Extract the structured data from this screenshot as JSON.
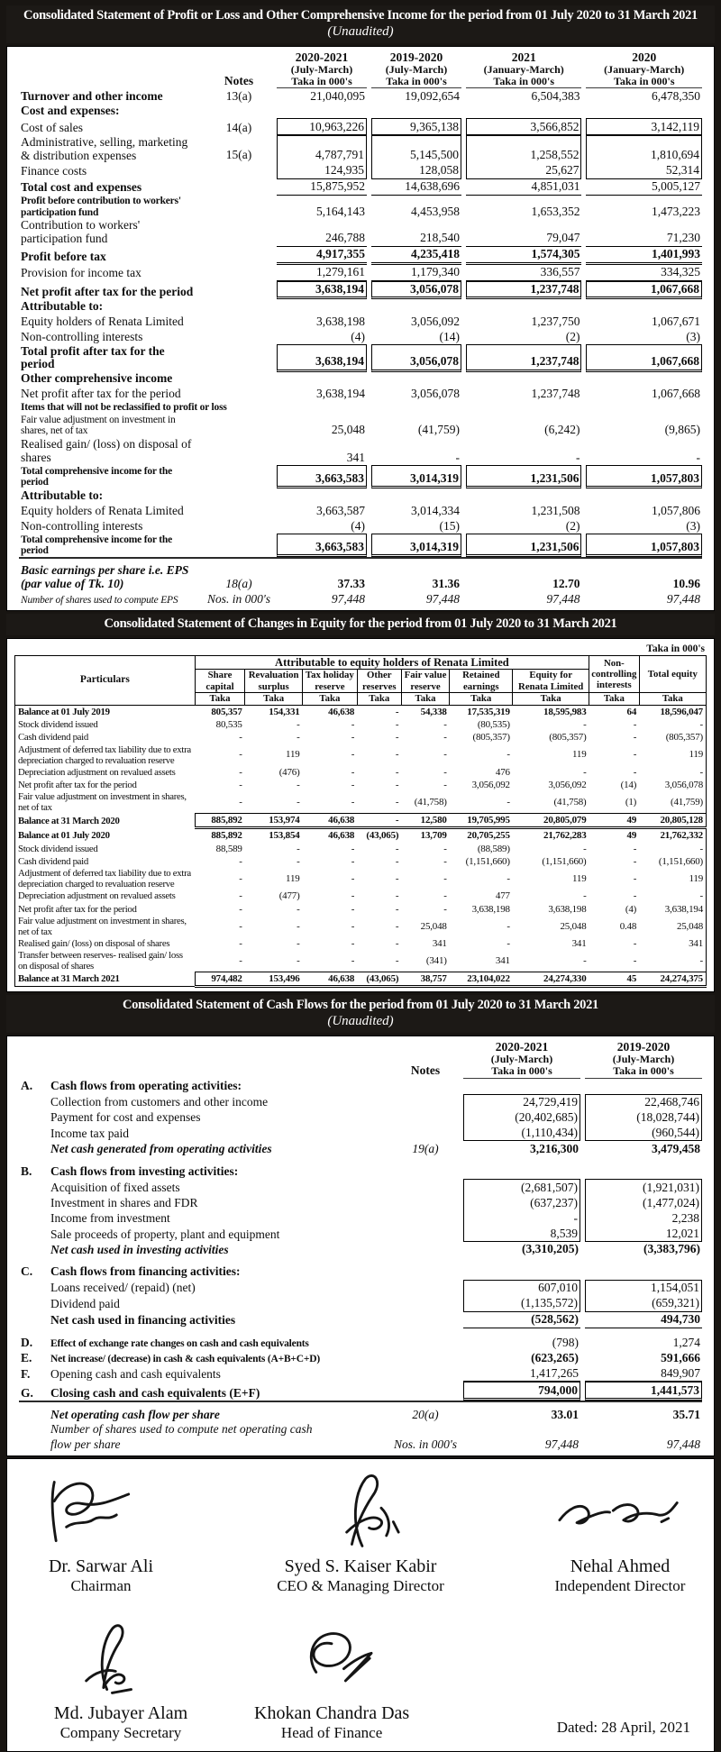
{
  "statement1": {
    "title": "Consolidated Statement of Profit or Loss and Other Comprehensive Income for the period from 01 July 2020 to 31 March 2021",
    "subtitle": "(Unaudited)",
    "notes_label": "Notes",
    "columns": [
      {
        "period": "2020-2021",
        "range": "(July-March)",
        "unit": "Taka in 000's"
      },
      {
        "period": "2019-2020",
        "range": "(July-March)",
        "unit": "Taka in 000's"
      },
      {
        "period": "2021",
        "range": "(January-March)",
        "unit": "Taka in 000's"
      },
      {
        "period": "2020",
        "range": "(January-March)",
        "unit": "Taka in 000's"
      }
    ],
    "rows": [
      {
        "l": "Turnover and other income",
        "n": "13(a)",
        "v": [
          "21,040,095",
          "19,092,654",
          "6,504,383",
          "6,478,350"
        ],
        "cls": "b"
      },
      {
        "l": "Cost and expenses:",
        "cls": "b"
      },
      {
        "l": "Cost of sales",
        "n": "14(a)",
        "v": [
          "10,963,226",
          "9,365,138",
          "3,566,852",
          "3,142,119"
        ],
        "vcls": "box"
      },
      {
        "l": "Administrative, selling, marketing & distribution expenses",
        "n": "15(a)",
        "v": [
          "4,787,791",
          "5,145,500",
          "1,258,552",
          "1,810,694"
        ],
        "vcls": "bx-t"
      },
      {
        "l": "Finance costs",
        "v": [
          "124,935",
          "128,058",
          "25,627",
          "52,314"
        ],
        "vcls": "bx-b"
      },
      {
        "l": "Total cost and expenses",
        "v": [
          "15,875,952",
          "14,638,696",
          "4,851,031",
          "5,005,127"
        ],
        "cls": "b",
        "vcls": "u"
      },
      {
        "l": "Profit before contribution to workers' participation fund",
        "v": [
          "5,164,143",
          "4,453,958",
          "1,653,352",
          "1,473,223"
        ],
        "cls": "b cond"
      },
      {
        "l": "Contribution to workers' participation fund",
        "v": [
          "246,788",
          "218,540",
          "79,047",
          "71,230"
        ],
        "vcls": "u"
      },
      {
        "l": "Profit before tax",
        "v": [
          "4,917,355",
          "4,235,418",
          "1,574,305",
          "1,401,993"
        ],
        "cls": "b",
        "vcls": "uu b"
      },
      {
        "l": "Provision for income tax",
        "v": [
          "1,279,161",
          "1,179,340",
          "336,557",
          "334,325"
        ],
        "vcls": "u"
      },
      {
        "l": "Net profit after tax for the period",
        "v": [
          "3,638,194",
          "3,056,078",
          "1,237,748",
          "1,067,668"
        ],
        "cls": "b",
        "vcls": "boxdd b"
      },
      {
        "l": "Attributable to:",
        "cls": "b"
      },
      {
        "l": "Equity holders of Renata Limited",
        "v": [
          "3,638,198",
          "3,056,092",
          "1,237,750",
          "1,067,671"
        ]
      },
      {
        "l": "Non-controlling interests",
        "v": [
          "(4)",
          "(14)",
          "(2)",
          "(3)"
        ]
      },
      {
        "l": "Total profit after tax for the period",
        "v": [
          "3,638,194",
          "3,056,078",
          "1,237,748",
          "1,067,668"
        ],
        "cls": "b",
        "vcls": "boxdd b"
      },
      {
        "l": "Other comprehensive income",
        "cls": "b"
      },
      {
        "l": "Net profit after tax for the period",
        "v": [
          "3,638,194",
          "3,056,078",
          "1,237,748",
          "1,067,668"
        ]
      },
      {
        "l": "Items that will not be reclassified to profit or loss",
        "cls": "b cond"
      },
      {
        "l": "Fair value adjustment on investment in shares, net of tax",
        "v": [
          "25,048",
          "(41,759)",
          "(6,242)",
          "(9,865)"
        ],
        "cls": "cond"
      },
      {
        "l": "Realised gain/ (loss) on disposal of shares",
        "v": [
          "341",
          "-",
          "-",
          "-"
        ]
      },
      {
        "l": "Total comprehensive income for the period",
        "v": [
          "3,663,583",
          "3,014,319",
          "1,231,506",
          "1,057,803"
        ],
        "cls": "b cond",
        "vcls": "boxdd b"
      },
      {
        "l": "Attributable to:",
        "cls": "b"
      },
      {
        "l": "Equity holders of Renata Limited",
        "v": [
          "3,663,587",
          "3,014,334",
          "1,231,508",
          "1,057,806"
        ]
      },
      {
        "l": "Non-controlling interests",
        "v": [
          "(4)",
          "(15)",
          "(2)",
          "(3)"
        ]
      },
      {
        "l": "Total comprehensive income for the period",
        "v": [
          "3,663,583",
          "3,014,319",
          "1,231,506",
          "1,057,803"
        ],
        "cls": "b cond",
        "vcls": "boxdd b"
      },
      {
        "sep": true
      },
      {
        "l": "Basic earnings per share i.e. EPS",
        "l2": "(par value of Tk. 10)",
        "n": "18(a)",
        "v": [
          "37.33",
          "31.36",
          "12.70",
          "10.96"
        ],
        "cls": "bi",
        "vcls": "b"
      },
      {
        "l": "Number of shares used to compute EPS",
        "n": "Nos. in 000's",
        "v": [
          "97,448",
          "97,448",
          "97,448",
          "97,448"
        ],
        "cls": "i cond",
        "vcls": "i"
      }
    ]
  },
  "statement2": {
    "title": "Consolidated Statement of Changes in Equity for the period from 01 July 2020 to 31 March 2021",
    "taka_label": "Taka in 000's",
    "particulars_label": "Particulars",
    "group_header": "Attributable to equity holders of Renata Limited",
    "taka_sub": "Taka",
    "columns": [
      "Share capital",
      "Revaluation surplus",
      "Tax holiday reserve",
      "Other reserves",
      "Fair value reserve",
      "Retained earnings",
      "Equity for Renata Limited",
      "Non-controlling interests",
      "Total equity"
    ],
    "rows": [
      {
        "l": "Balance at 01 July 2019",
        "v": [
          "805,357",
          "154,331",
          "46,638",
          "-",
          "54,338",
          "17,535,319",
          "18,595,983",
          "64",
          "18,596,047"
        ],
        "cls": "b"
      },
      {
        "l": "Stock dividend issued",
        "v": [
          "80,535",
          "-",
          "-",
          "-",
          "-",
          "(80,535)",
          "-",
          "-",
          "-"
        ]
      },
      {
        "l": "Cash dividend paid",
        "v": [
          "-",
          "-",
          "-",
          "-",
          "-",
          "(805,357)",
          "(805,357)",
          "-",
          "(805,357)"
        ]
      },
      {
        "l": "Adjustment of deferred tax liability due to extra depreciation charged to revaluation reserve",
        "v": [
          "-",
          "119",
          "-",
          "-",
          "-",
          "-",
          "119",
          "-",
          "119"
        ]
      },
      {
        "l": "Depreciation adjustment on revalued assets",
        "v": [
          "-",
          "(476)",
          "-",
          "-",
          "-",
          "476",
          "-",
          "-",
          "-"
        ]
      },
      {
        "l": "Net profit after tax for the period",
        "v": [
          "-",
          "-",
          "-",
          "-",
          "-",
          "3,056,092",
          "3,056,092",
          "(14)",
          "3,056,078"
        ]
      },
      {
        "l": "Fair value adjustment on investment in shares, net of tax",
        "v": [
          "-",
          "-",
          "-",
          "-",
          "(41,758)",
          "-",
          "(41,758)",
          "(1)",
          "(41,759)"
        ]
      },
      {
        "l": "Balance at 31 March 2020",
        "v": [
          "885,892",
          "153,974",
          "46,638",
          "-",
          "12,580",
          "19,705,995",
          "20,805,079",
          "49",
          "20,805,128"
        ],
        "cls": "b boxed"
      },
      {
        "l": "Balance at 01 July 2020",
        "v": [
          "885,892",
          "153,854",
          "46,638",
          "(43,065)",
          "13,709",
          "20,705,255",
          "21,762,283",
          "49",
          "21,762,332"
        ],
        "cls": "b"
      },
      {
        "l": "Stock dividend issued",
        "v": [
          "88,589",
          "-",
          "-",
          "-",
          "-",
          "(88,589)",
          "-",
          "-",
          "-"
        ]
      },
      {
        "l": "Cash dividend paid",
        "v": [
          "-",
          "-",
          "-",
          "-",
          "-",
          "(1,151,660)",
          "(1,151,660)",
          "-",
          "(1,151,660)"
        ]
      },
      {
        "l": "Adjustment of deferred tax liability due to extra depreciation charged to revaluation reserve",
        "v": [
          "-",
          "119",
          "-",
          "-",
          "-",
          "-",
          "119",
          "-",
          "119"
        ]
      },
      {
        "l": "Depreciation adjustment on revalued assets",
        "v": [
          "-",
          "(477)",
          "-",
          "-",
          "-",
          "477",
          "-",
          "-",
          "-"
        ]
      },
      {
        "l": "Net profit after tax for the period",
        "v": [
          "-",
          "-",
          "-",
          "-",
          "-",
          "3,638,198",
          "3,638,198",
          "(4)",
          "3,638,194"
        ]
      },
      {
        "l": "Fair value adjustment on investment in shares, net of tax",
        "v": [
          "-",
          "-",
          "-",
          "-",
          "25,048",
          "-",
          "25,048",
          "0.48",
          "25,048"
        ]
      },
      {
        "l": "Realised gain/ (loss) on disposal of shares",
        "v": [
          "-",
          "-",
          "-",
          "-",
          "341",
          "-",
          "341",
          "-",
          "341"
        ]
      },
      {
        "l": "Transfer between reserves- realised gain/ loss on disposal of shares",
        "v": [
          "-",
          "-",
          "-",
          "-",
          "(341)",
          "341",
          "-",
          "-",
          "-"
        ]
      },
      {
        "l": "Balance at 31 March 2021",
        "v": [
          "974,482",
          "153,496",
          "46,638",
          "(43,065)",
          "38,757",
          "23,104,022",
          "24,274,330",
          "45",
          "24,274,375"
        ],
        "cls": "b boxed"
      }
    ]
  },
  "statement3": {
    "title": "Consolidated Statement of Cash Flows for the period from 01 July 2020 to 31 March 2021",
    "subtitle": "(Unaudited)",
    "notes_label": "Notes",
    "columns": [
      {
        "period": "2020-2021",
        "range": "(July-March)",
        "unit": "Taka in 000's"
      },
      {
        "period": "2019-2020",
        "range": "(July-March)",
        "unit": "Taka in 000's"
      }
    ],
    "rows": [
      {
        "g": "A.",
        "l": "Cash flows from operating activities:",
        "cls": "b"
      },
      {
        "l": "Collection from customers and other income",
        "v": [
          "24,729,419",
          "22,468,746"
        ],
        "vcls": "bx-t"
      },
      {
        "l": "Payment for cost and expenses",
        "v": [
          "(20,402,685)",
          "(18,028,744)"
        ],
        "vcls": "bx-m"
      },
      {
        "l": "Income tax paid",
        "v": [
          "(1,110,434)",
          "(960,544)"
        ],
        "vcls": "bx-b"
      },
      {
        "l": "Net cash generated from operating activities",
        "n": "19(a)",
        "v": [
          "3,216,300",
          "3,479,458"
        ],
        "cls": "bi",
        "vcls": "b"
      },
      {
        "sp": true
      },
      {
        "g": "B.",
        "l": "Cash flows from investing activities:",
        "cls": "b"
      },
      {
        "l": "Acquisition of fixed assets",
        "v": [
          "(2,681,507)",
          "(1,921,031)"
        ],
        "vcls": "bx-t"
      },
      {
        "l": "Investment in shares and FDR",
        "v": [
          "(637,237)",
          "(1,477,024)"
        ],
        "vcls": "bx-m"
      },
      {
        "l": "Income from investment",
        "v": [
          "-",
          "2,238"
        ],
        "vcls": "bx-m"
      },
      {
        "l": "Sale proceeds of property, plant and equipment",
        "v": [
          "8,539",
          "12,021"
        ],
        "vcls": "bx-b"
      },
      {
        "l": "Net cash used in investing activities",
        "v": [
          "(3,310,205)",
          "(3,383,796)"
        ],
        "cls": "bi",
        "vcls": "b"
      },
      {
        "sp": true
      },
      {
        "g": "C.",
        "l": "Cash flows from financing activities:",
        "cls": "b"
      },
      {
        "l": "Loans received/ (repaid) (net)",
        "v": [
          "607,010",
          "1,154,051"
        ],
        "vcls": "bx-t"
      },
      {
        "l": "Dividend paid",
        "v": [
          "(1,135,572)",
          "(659,321)"
        ],
        "vcls": "bx-b"
      },
      {
        "l": "Net cash used in financing activities",
        "v": [
          "(528,562)",
          "494,730"
        ],
        "cls": "b",
        "vcls": "b u"
      },
      {
        "sp": true
      },
      {
        "g": "D.",
        "l": "Effect of exchange rate changes on cash and cash equivalents",
        "v": [
          "(798)",
          "1,274"
        ],
        "cls": "b cond"
      },
      {
        "g": "E.",
        "l": "Net increase/ (decrease) in cash & cash equivalents (A+B+C+D)",
        "v": [
          "(623,265)",
          "591,666"
        ],
        "cls": "b cond",
        "vcls": "b"
      },
      {
        "g": "F.",
        "l": "Opening cash and cash equivalents",
        "v": [
          "1,417,265",
          "849,907"
        ],
        "vcls": "u"
      },
      {
        "g": "G.",
        "l": "Closing cash and cash equivalents (E+F)",
        "v": [
          "794,000",
          "1,441,573"
        ],
        "cls": "b",
        "vcls": "boxdd b"
      },
      {
        "sep": true
      },
      {
        "l": "Net operating cash flow per share",
        "n": "20(a)",
        "v": [
          "33.01",
          "35.71"
        ],
        "cls": "bi",
        "vcls": "b"
      },
      {
        "l": "Number of shares used to compute net operating cash",
        "cls": "i"
      },
      {
        "l": "flow per share",
        "n": "Nos. in 000's",
        "v": [
          "97,448",
          "97,448"
        ],
        "cls": "i",
        "vcls": "i"
      }
    ]
  },
  "signatures": {
    "top": [
      {
        "name": "Dr. Sarwar Ali",
        "title": "Chairman"
      },
      {
        "name": "Syed S. Kaiser Kabir",
        "title": "CEO & Managing Director"
      },
      {
        "name": "Nehal Ahmed",
        "title": "Independent Director"
      }
    ],
    "bottom": [
      {
        "name": "Md. Jubayer Alam",
        "title": "Company Secretary"
      },
      {
        "name": "Khokan Chandra Das",
        "title": "Head of Finance"
      }
    ],
    "dated": "Dated: 28 April, 2021"
  }
}
